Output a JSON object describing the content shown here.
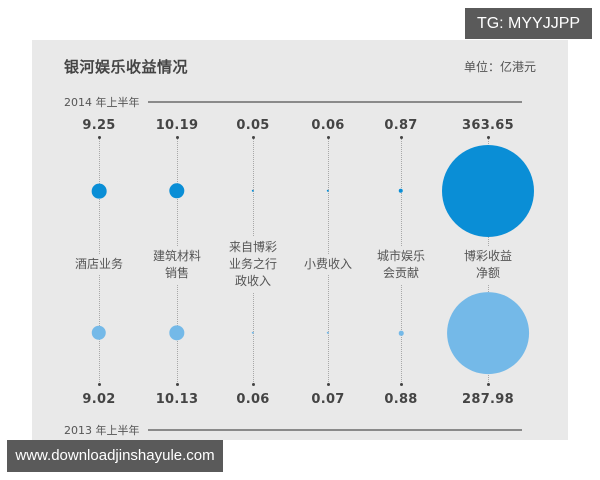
{
  "watermarks": {
    "top_right": "TG: MYYJJPP",
    "bottom_left": "www.downloadjinshayule.com"
  },
  "header": {
    "title": "银河娱乐收益情况",
    "unit": "单位：亿港元"
  },
  "periods": {
    "top": "2014 年上半年",
    "bottom": "2013 年上半年"
  },
  "colors": {
    "series_2014": "#0a8ed6",
    "series_2013": "#74b9e8",
    "panel_bg": "#e9e9e9"
  },
  "columns": [
    {
      "label": "酒店业务",
      "v2014": "9.25",
      "v2013": "9.02"
    },
    {
      "label": "建筑材料\n销售",
      "v2014": "10.19",
      "v2013": "10.13"
    },
    {
      "label": "来自博彩\n业务之行\n政收入",
      "v2014": "0.05",
      "v2013": "0.06"
    },
    {
      "label": "小费收入",
      "v2014": "0.06",
      "v2013": "0.07"
    },
    {
      "label": "城市娱乐\n会贡献",
      "v2014": "0.87",
      "v2013": "0.88"
    },
    {
      "label": "博彩收益\n净额",
      "v2014": "363.65",
      "v2013": "287.98"
    }
  ],
  "chart_data": {
    "type": "bubble",
    "title": "银河娱乐收益情况",
    "unit": "亿港元",
    "categories": [
      "酒店业务",
      "建筑材料销售",
      "来自博彩业务之行政收入",
      "小费收入",
      "城市娱乐会贡献",
      "博彩收益净额"
    ],
    "series": [
      {
        "name": "2014 年上半年",
        "color": "#0a8ed6",
        "values": [
          9.25,
          10.19,
          0.05,
          0.06,
          0.87,
          363.65
        ]
      },
      {
        "name": "2013 年上半年",
        "color": "#74b9e8",
        "values": [
          9.02,
          10.13,
          0.06,
          0.07,
          0.88,
          287.98
        ]
      }
    ],
    "layout": {
      "series_2014_position": "top",
      "series_2013_position": "bottom",
      "grid": false,
      "legend": "period labels with horizontal rules"
    }
  }
}
